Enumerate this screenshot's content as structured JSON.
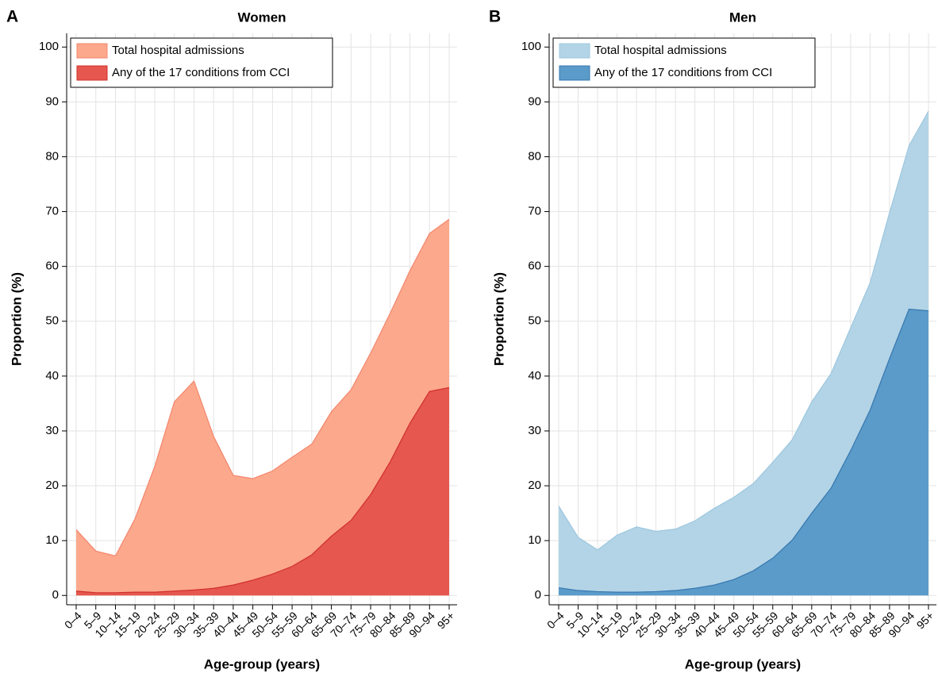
{
  "chart_data": [
    {
      "type": "area",
      "panel": "A",
      "title": "Women",
      "x_label": "Age-group (years)",
      "y_label": "Proportion (%)",
      "categories": [
        "0–4",
        "5–9",
        "10–14",
        "15–19",
        "20–24",
        "25–29",
        "30–34",
        "35–39",
        "40–44",
        "45–49",
        "50–54",
        "55–59",
        "60–64",
        "65–69",
        "70–74",
        "75–79",
        "80–84",
        "85–89",
        "90–94",
        "95+"
      ],
      "series": [
        {
          "name": "Total hospital admissions",
          "color": "#fca88c",
          "line_color": "#f4866c",
          "values": [
            12.0,
            8.1,
            7.2,
            14.0,
            23.5,
            35.3,
            39.1,
            29.0,
            21.9,
            21.3,
            22.7,
            25.2,
            27.6,
            33.5,
            37.5,
            44.2,
            51.5,
            59.2,
            66.0,
            68.6
          ]
        },
        {
          "name": "Any of the 17 conditions from CCI",
          "color": "#e5574f",
          "line_color": "#d0302a",
          "values": [
            0.8,
            0.5,
            0.5,
            0.6,
            0.6,
            0.8,
            1.0,
            1.3,
            1.9,
            2.8,
            3.9,
            5.3,
            7.4,
            10.8,
            13.7,
            18.4,
            24.4,
            31.4,
            37.2,
            37.9
          ]
        }
      ],
      "ylim": [
        -1.7,
        102.5
      ],
      "yticks": [
        0,
        10,
        20,
        30,
        40,
        50,
        60,
        70,
        80,
        90,
        100
      ],
      "grid": true,
      "legend": "top-left"
    },
    {
      "type": "area",
      "panel": "B",
      "title": "Men",
      "x_label": "Age-group (years)",
      "y_label": "Proportion (%)",
      "categories": [
        "0–4",
        "5–9",
        "10–14",
        "15–19",
        "20–24",
        "25–29",
        "30–34",
        "35–39",
        "40–44",
        "45–49",
        "50–54",
        "55–59",
        "60–64",
        "65–69",
        "70–74",
        "75–79",
        "80–84",
        "85–89",
        "90–94",
        "95+"
      ],
      "series": [
        {
          "name": "Total hospital admissions",
          "color": "#b3d4e6",
          "line_color": "#9cc7df",
          "values": [
            16.3,
            10.6,
            8.3,
            11.0,
            12.5,
            11.7,
            12.1,
            13.6,
            15.9,
            17.9,
            20.4,
            24.3,
            28.4,
            35.3,
            40.5,
            48.8,
            57.0,
            69.8,
            82.0,
            88.3
          ]
        },
        {
          "name": "Any of the 17 conditions from CCI",
          "color": "#5b9bc9",
          "line_color": "#3677b0",
          "values": [
            1.4,
            0.9,
            0.7,
            0.6,
            0.6,
            0.7,
            0.9,
            1.3,
            1.9,
            2.9,
            4.5,
            6.8,
            10.1,
            15.0,
            19.6,
            26.4,
            33.8,
            43.2,
            52.2,
            51.9
          ]
        }
      ],
      "ylim": [
        -1.7,
        102.5
      ],
      "yticks": [
        0,
        10,
        20,
        30,
        40,
        50,
        60,
        70,
        80,
        90,
        100
      ],
      "grid": true,
      "legend": "top-left"
    }
  ]
}
